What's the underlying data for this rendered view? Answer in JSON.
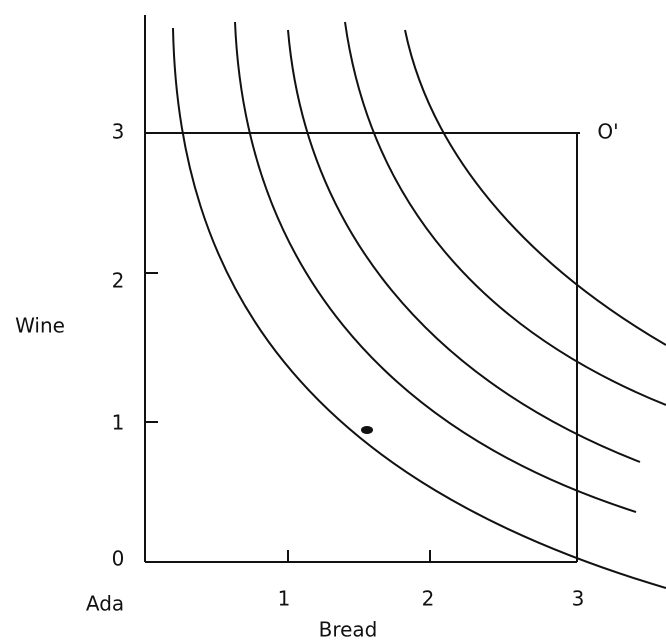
{
  "axes": {
    "x_label": "Bread",
    "y_label": "Wine",
    "origin_label": "Ada",
    "opposite_origin_label": "O'",
    "x_ticks": [
      "1",
      "2",
      "3"
    ],
    "y_ticks": [
      "0",
      "1",
      "2",
      "3"
    ]
  }
}
